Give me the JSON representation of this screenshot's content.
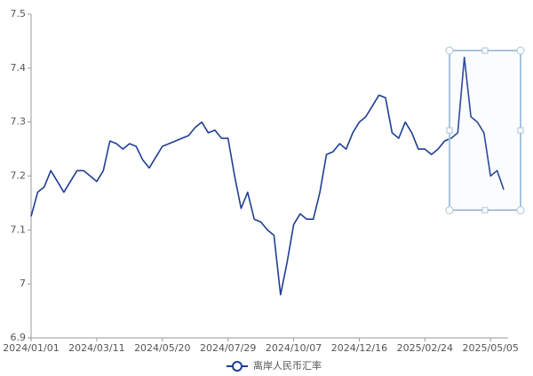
{
  "chart_data": {
    "type": "line",
    "x": [
      "2024/01/01",
      "2024/01/08",
      "2024/01/15",
      "2024/01/22",
      "2024/01/29",
      "2024/02/05",
      "2024/02/12",
      "2024/02/19",
      "2024/02/26",
      "2024/03/04",
      "2024/03/11",
      "2024/03/18",
      "2024/03/25",
      "2024/04/01",
      "2024/04/08",
      "2024/04/15",
      "2024/04/22",
      "2024/04/29",
      "2024/05/06",
      "2024/05/13",
      "2024/05/20",
      "2024/05/27",
      "2024/06/03",
      "2024/06/10",
      "2024/06/17",
      "2024/06/24",
      "2024/07/01",
      "2024/07/08",
      "2024/07/15",
      "2024/07/22",
      "2024/07/29",
      "2024/08/05",
      "2024/08/12",
      "2024/08/19",
      "2024/08/26",
      "2024/09/02",
      "2024/09/09",
      "2024/09/16",
      "2024/09/23",
      "2024/09/30",
      "2024/10/07",
      "2024/10/14",
      "2024/10/21",
      "2024/10/28",
      "2024/11/04",
      "2024/11/11",
      "2024/11/18",
      "2024/11/25",
      "2024/12/02",
      "2024/12/09",
      "2024/12/16",
      "2024/12/23",
      "2024/12/30",
      "2025/01/06",
      "2025/01/13",
      "2025/01/20",
      "2025/01/27",
      "2025/02/03",
      "2025/02/10",
      "2025/02/17",
      "2025/02/24",
      "2025/03/03",
      "2025/03/10",
      "2025/03/17",
      "2025/03/24",
      "2025/03/31",
      "2025/04/07",
      "2025/04/14",
      "2025/04/21",
      "2025/04/28",
      "2025/05/05",
      "2025/05/12",
      "2025/05/19"
    ],
    "series": [
      {
        "name": "离岸人民币汇率",
        "color": "#1e3f94",
        "values": [
          7.125,
          7.17,
          7.18,
          7.21,
          7.19,
          7.17,
          7.19,
          7.21,
          7.21,
          7.2,
          7.19,
          7.21,
          7.265,
          7.26,
          7.25,
          7.26,
          7.255,
          7.23,
          7.215,
          7.235,
          7.255,
          7.26,
          7.265,
          7.27,
          7.275,
          7.29,
          7.3,
          7.28,
          7.285,
          7.27,
          7.27,
          7.2,
          7.14,
          7.17,
          7.12,
          7.115,
          7.1,
          7.09,
          6.98,
          7.04,
          7.11,
          7.13,
          7.12,
          7.12,
          7.17,
          7.24,
          7.245,
          7.26,
          7.25,
          7.28,
          7.3,
          7.31,
          7.33,
          7.35,
          7.345,
          7.28,
          7.27,
          7.3,
          7.28,
          7.25,
          7.25,
          7.24,
          7.25,
          7.265,
          7.27,
          7.28,
          7.42,
          7.31,
          7.3,
          7.28,
          7.2,
          7.21,
          7.175
        ]
      }
    ],
    "xticks": [
      "2024/01/01",
      "2024/03/11",
      "2024/05/20",
      "2024/07/29",
      "2024/10/07",
      "2024/12/16",
      "2025/02/24",
      "2025/05/05"
    ],
    "ylim": [
      6.9,
      7.5
    ],
    "yticks": [
      6.9,
      7,
      7.1,
      7.2,
      7.3,
      7.4,
      7.5
    ],
    "grid": false,
    "legend": "bottom"
  }
}
